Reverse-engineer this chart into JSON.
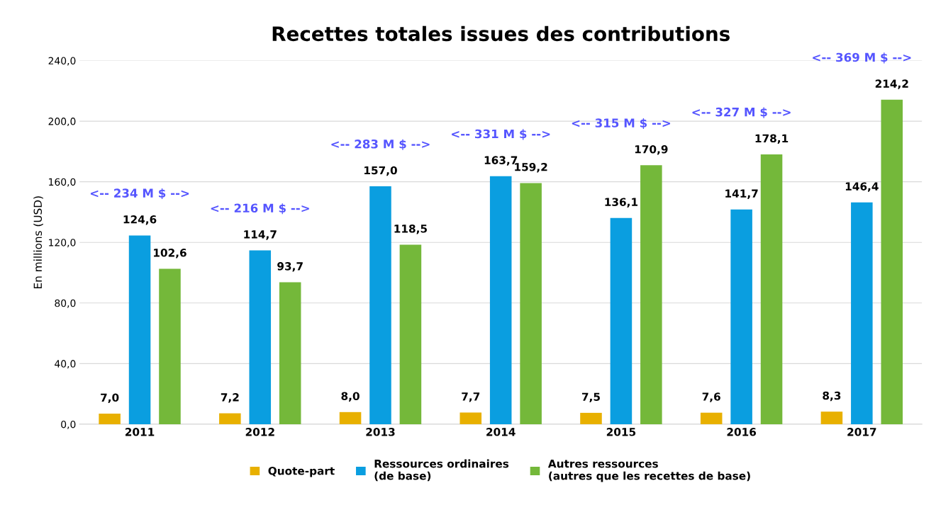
{
  "chart_data": {
    "type": "bar",
    "title": "Recettes totales issues des contributions",
    "ylabel": "En millions (USD)",
    "categories": [
      "2011",
      "2012",
      "2013",
      "2014",
      "2015",
      "2016",
      "2017"
    ],
    "series": [
      {
        "name": "Quote-part",
        "color": "#e8b000",
        "values": [
          7.0,
          7.2,
          8.0,
          7.7,
          7.5,
          7.6,
          8.3
        ],
        "value_labels": [
          "7,0",
          "7,2",
          "8,0",
          "7,7",
          "7,5",
          "7,6",
          "8,3"
        ]
      },
      {
        "name": "Ressources ordinaires\n(de base)",
        "color": "#0a9ee0",
        "values": [
          124.6,
          114.7,
          157.0,
          163.7,
          136.1,
          141.7,
          146.4
        ],
        "value_labels": [
          "124,6",
          "114,7",
          "157,0",
          "163,7",
          "136,1",
          "141,7",
          "146,4"
        ]
      },
      {
        "name": "Autres ressources\n(autres que les recettes de base)",
        "color": "#74b83a",
        "values": [
          102.6,
          93.7,
          118.5,
          159.2,
          170.9,
          178.1,
          214.2
        ],
        "value_labels": [
          "102,6",
          "93,7",
          "118,5",
          "159,2",
          "170,9",
          "178,1",
          "214,2"
        ]
      }
    ],
    "ylim": [
      0,
      240
    ],
    "yticks": [
      {
        "value": 0,
        "label": "0,0"
      },
      {
        "value": 40,
        "label": "40,0"
      },
      {
        "value": 80,
        "label": "80,0"
      },
      {
        "value": 120,
        "label": "120,0"
      },
      {
        "value": 160,
        "label": "160,0"
      },
      {
        "value": 200,
        "label": "200,0"
      },
      {
        "value": 240,
        "label": "240,0"
      }
    ],
    "grid": "y",
    "legend": "bottom",
    "annotations": [
      "<-- 234 M $ -->",
      "<-- 216 M $ -->",
      "<-- 283 M $ -->",
      "<-- 331 M $ -->",
      "<-- 315 M $ -->",
      "<-- 327 M $ -->",
      "<-- 369 M $ -->"
    ]
  }
}
